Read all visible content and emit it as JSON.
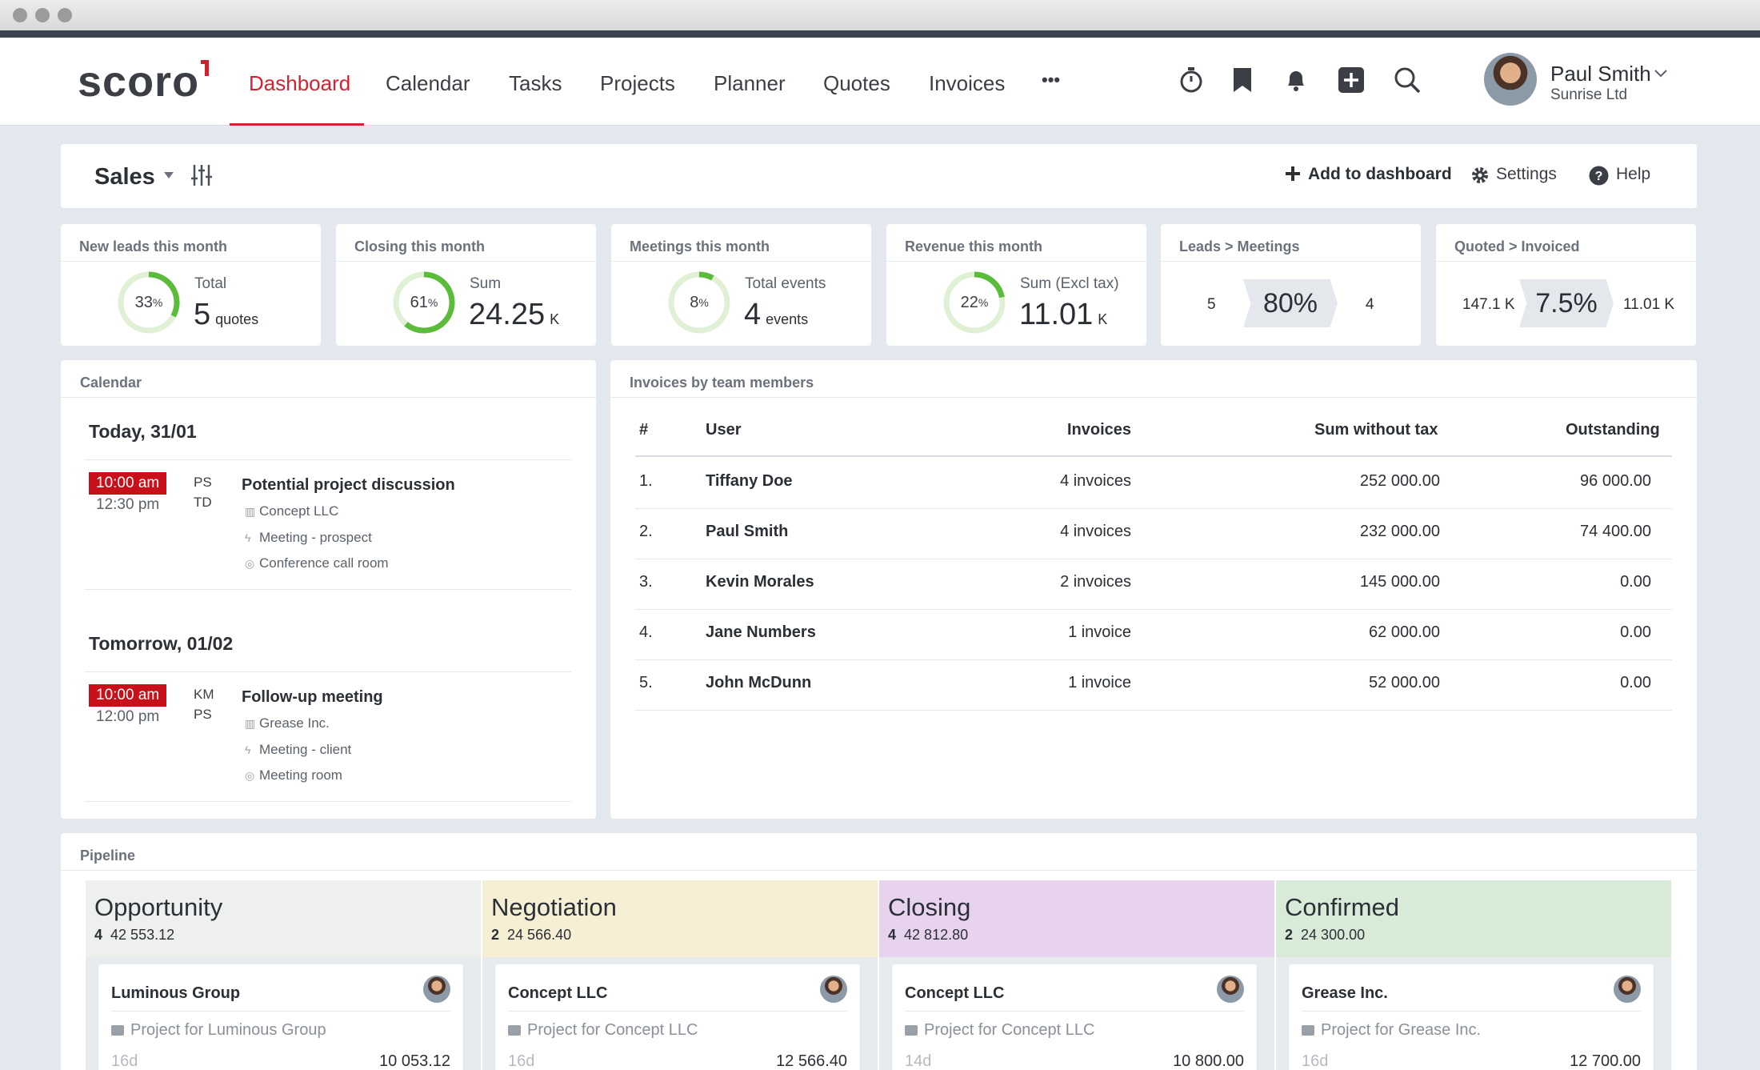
{
  "brand": {
    "logo": "scoro",
    "accent": "#d32330"
  },
  "nav": {
    "items": [
      "Dashboard",
      "Calendar",
      "Tasks",
      "Projects",
      "Planner",
      "Quotes",
      "Invoices"
    ],
    "active": "Dashboard",
    "more": "•••",
    "icons": [
      "timer-icon",
      "bookmark-icon",
      "notifications-bell-icon",
      "add-icon",
      "search-icon"
    ]
  },
  "user": {
    "name": "Paul Smith",
    "company": "Sunrise Ltd"
  },
  "header": {
    "title": "Sales",
    "add_label": "Add to dashboard",
    "settings_label": "Settings",
    "help_label": "Help"
  },
  "stats": [
    {
      "label": "New leads this month",
      "percent": 33,
      "percent_text": "33",
      "caption": "Total",
      "value": "5",
      "unit": "quotes"
    },
    {
      "label": "Closing this month",
      "percent": 61,
      "percent_text": "61",
      "caption": "Sum",
      "value": "24.25",
      "unit": "K"
    },
    {
      "label": "Meetings this month",
      "percent": 8,
      "percent_text": "8",
      "caption": "Total events",
      "value": "4",
      "unit": "events"
    },
    {
      "label": "Revenue this month",
      "percent": 22,
      "percent_text": "22",
      "caption": "Sum (Excl tax)",
      "value": "11.01",
      "unit": "K"
    }
  ],
  "conversions": [
    {
      "label": "Leads > Meetings",
      "left": "5",
      "rate": "80%",
      "right": "4"
    },
    {
      "label": "Quoted > Invoiced",
      "left": "147.1 K",
      "rate": "7.5%",
      "right": "11.01 K"
    }
  ],
  "percent_sign": "%",
  "calendar": {
    "title": "Calendar",
    "days": [
      {
        "heading": "Today, 31/01",
        "start": "10:00 am",
        "end": "12:30 pm",
        "initials": [
          "PS",
          "TD"
        ],
        "title": "Potential project discussion",
        "company": "Concept LLC",
        "type": "Meeting - prospect",
        "room": "Conference call room"
      },
      {
        "heading": "Tomorrow, 01/02",
        "start": "10:00 am",
        "end": "12:00 pm",
        "initials": [
          "KM",
          "PS"
        ],
        "title": "Follow-up meeting",
        "company": "Grease Inc.",
        "type": "Meeting - client",
        "room": "Meeting room"
      }
    ]
  },
  "invoices": {
    "title": "Invoices by team members",
    "columns": [
      "#",
      "User",
      "Invoices",
      "Sum without tax",
      "Outstanding"
    ],
    "rows": [
      [
        "1.",
        "Tiffany Doe",
        "4 invoices",
        "252 000.00",
        "96 000.00"
      ],
      [
        "2.",
        "Paul Smith",
        "4 invoices",
        "232 000.00",
        "74 400.00"
      ],
      [
        "3.",
        "Kevin Morales",
        "2 invoices",
        "145 000.00",
        "0.00"
      ],
      [
        "4.",
        "Jane Numbers",
        "1 invoice",
        "62 000.00",
        "0.00"
      ],
      [
        "5.",
        "John McDunn",
        "1 invoice",
        "52 000.00",
        "0.00"
      ]
    ]
  },
  "pipeline": {
    "title": "Pipeline",
    "stages": [
      {
        "name": "Opportunity",
        "count": "4",
        "sum": "42 553.12",
        "color": "#eef0ee",
        "card": {
          "title": "Luminous Group",
          "project": "Project for Luminous Group",
          "days": "16d",
          "amount": "10 053.12"
        }
      },
      {
        "name": "Negotiation",
        "count": "2",
        "sum": "24 566.40",
        "color": "#f6efd4",
        "card": {
          "title": "Concept LLC",
          "project": "Project for Concept LLC",
          "days": "16d",
          "amount": "12 566.40"
        }
      },
      {
        "name": "Closing",
        "count": "4",
        "sum": "42 812.80",
        "color": "#e8d3ef",
        "card": {
          "title": "Concept LLC",
          "project": "Project for Concept LLC",
          "days": "14d",
          "amount": "10 800.00"
        }
      },
      {
        "name": "Confirmed",
        "count": "2",
        "sum": "24 300.00",
        "color": "#d8ebd9",
        "card": {
          "title": "Grease Inc.",
          "project": "Project for Grease Inc.",
          "days": "16d",
          "amount": "12 700.00"
        }
      }
    ]
  }
}
